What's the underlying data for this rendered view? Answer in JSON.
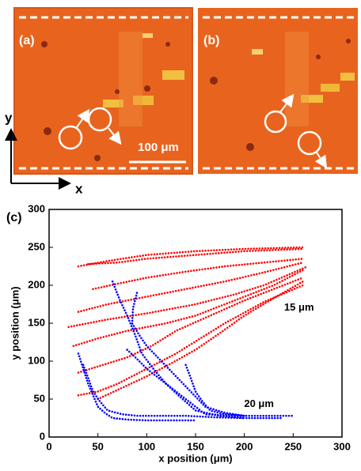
{
  "panels": [
    {
      "label": "(a)",
      "scale_bar": "100 μm"
    },
    {
      "label": "(b)"
    }
  ],
  "axes_arrows": {
    "y": "y",
    "x": "x"
  },
  "chart_data": {
    "type": "scatter",
    "panel_label": "(c)",
    "xlabel": "x position (μm)",
    "ylabel": "y position (μm)",
    "xlim": [
      0,
      300
    ],
    "ylim": [
      0,
      300
    ],
    "xticks": [
      0,
      50,
      100,
      150,
      200,
      250,
      300
    ],
    "yticks": [
      0,
      50,
      100,
      150,
      200,
      250,
      300
    ],
    "annotations": [
      {
        "text": "15 μm",
        "x": 256,
        "y": 170
      },
      {
        "text": "20 μm",
        "x": 215,
        "y": 43
      }
    ],
    "series": [
      {
        "color": "#ff0000",
        "x": [
          30,
          60,
          100,
          150,
          200,
          260
        ],
        "values": [
          225,
          232,
          240,
          245,
          248,
          250
        ]
      },
      {
        "color": "#ff0000",
        "x": [
          40,
          70,
          100,
          150,
          200,
          260
        ],
        "values": [
          228,
          230,
          235,
          240,
          245,
          248
        ]
      },
      {
        "color": "#ff0000",
        "x": [
          45,
          70,
          100,
          140,
          180,
          220,
          260
        ],
        "values": [
          195,
          202,
          210,
          218,
          225,
          230,
          235
        ]
      },
      {
        "color": "#ff0000",
        "x": [
          30,
          60,
          100,
          140,
          180,
          220,
          260
        ],
        "values": [
          165,
          175,
          185,
          195,
          205,
          217,
          230
        ]
      },
      {
        "color": "#ff0000",
        "x": [
          20,
          60,
          100,
          150,
          190,
          220,
          265
        ],
        "values": [
          145,
          155,
          163,
          175,
          188,
          200,
          225
        ]
      },
      {
        "color": "#ff0000",
        "x": [
          25,
          50,
          80,
          120,
          150,
          200,
          230,
          260
        ],
        "values": [
          120,
          130,
          140,
          150,
          160,
          185,
          200,
          220
        ]
      },
      {
        "color": "#ff0000",
        "x": [
          30,
          55,
          80,
          105,
          130,
          165,
          200,
          230,
          260
        ],
        "values": [
          85,
          95,
          105,
          120,
          140,
          160,
          180,
          195,
          210
        ]
      },
      {
        "color": "#ff0000",
        "x": [
          30,
          50,
          70,
          100,
          130,
          155,
          180,
          220,
          260
        ],
        "values": [
          55,
          60,
          70,
          90,
          110,
          130,
          150,
          178,
          200
        ]
      },
      {
        "color": "#ff0000",
        "x": [
          50,
          75,
          100,
          125,
          150,
          175,
          200,
          230,
          260
        ],
        "values": [
          50,
          65,
          80,
          97,
          115,
          137,
          160,
          183,
          205
        ]
      },
      {
        "color": "#0000ff",
        "x": [
          65,
          72,
          80,
          88,
          95,
          108,
          120,
          135,
          150,
          175,
          200,
          240
        ],
        "values": [
          205,
          182,
          160,
          135,
          110,
          88,
          70,
          52,
          35,
          28,
          25,
          25
        ]
      },
      {
        "color": "#0000ff",
        "x": [
          90,
          86,
          85,
          92,
          100,
          115,
          130,
          145,
          160,
          180,
          200
        ],
        "values": [
          190,
          170,
          150,
          135,
          120,
          100,
          80,
          60,
          40,
          32,
          28
        ]
      },
      {
        "color": "#0000ff",
        "x": [
          30,
          35,
          40,
          45,
          50,
          57,
          65,
          80,
          100,
          125,
          150
        ],
        "values": [
          110,
          90,
          70,
          55,
          40,
          32,
          25,
          23,
          22,
          22,
          22
        ]
      },
      {
        "color": "#0000ff",
        "x": [
          35,
          40,
          45,
          52,
          60,
          75,
          90,
          115,
          140,
          170,
          200
        ],
        "values": [
          95,
          78,
          60,
          47,
          35,
          30,
          28,
          28,
          28,
          26,
          25
        ]
      },
      {
        "color": "#0000ff",
        "x": [
          80,
          90,
          100,
          115,
          130,
          145,
          160,
          190,
          220,
          250
        ],
        "values": [
          115,
          103,
          90,
          75,
          60,
          45,
          30,
          28,
          28,
          28
        ]
      },
      {
        "color": "#0000ff",
        "x": [
          140,
          145,
          150,
          157,
          165,
          180,
          200
        ],
        "values": [
          95,
          78,
          60,
          47,
          35,
          30,
          28
        ]
      }
    ]
  }
}
